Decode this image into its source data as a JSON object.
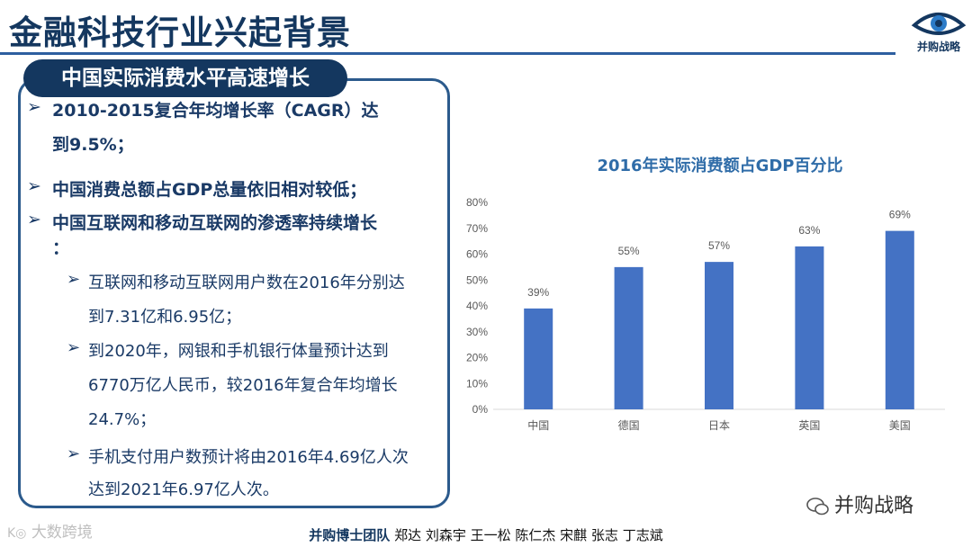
{
  "header": {
    "title": "金融科技行业兴起背景",
    "logo_text": "并购战略"
  },
  "section": {
    "pill_label": "中国实际消费水平高速增长",
    "bullets": [
      {
        "lines": [
          "2010-2015复合年均增长率（CAGR）达",
          "到9.5%；"
        ]
      },
      {
        "lines": [
          "中国消费总额占GDP总量依旧相对较低；"
        ]
      },
      {
        "lines": [
          "中国互联网和移动互联网的渗透率持续增长",
          "："
        ]
      }
    ],
    "subbullets": [
      {
        "lines": [
          "互联网和移动互联网用户数在2016年分别达",
          "到7.31亿和6.95亿；"
        ]
      },
      {
        "lines": [
          "到2020年，网银和手机银行体量预计达到",
          "6770万亿人民币，较2016年复合年均增长",
          "24.7%；"
        ]
      },
      {
        "lines": [
          "手机支付用户数预计将由2016年4.69亿人次",
          "达到2021年6.97亿人次。"
        ]
      }
    ],
    "arrow": "➢"
  },
  "chart_data": {
    "type": "bar",
    "title": "2016年实际消费额占GDP百分比",
    "categories": [
      "中国",
      "德国",
      "日本",
      "英国",
      "美国"
    ],
    "values": [
      39,
      55,
      57,
      63,
      69
    ],
    "data_labels": [
      "39%",
      "55%",
      "57%",
      "63%",
      "69%"
    ],
    "ylim": [
      0,
      80
    ],
    "yticks": [
      "0%",
      "10%",
      "20%",
      "30%",
      "40%",
      "50%",
      "60%",
      "70%",
      "80%"
    ],
    "xlabel": "",
    "ylabel": "",
    "grid": false,
    "bar_color": "#4472c4"
  },
  "footer": {
    "team": "并购博士团队",
    "members": " 郑达 刘森宇 王一松 陈仁杰 宋麒 张志 丁志斌"
  },
  "watermarks": {
    "left": "大数跨境",
    "right": "并购战略"
  }
}
